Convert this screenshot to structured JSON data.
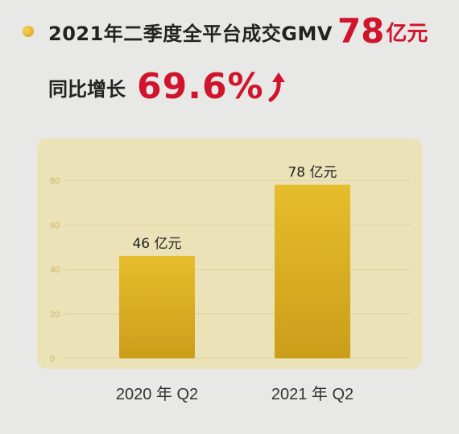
{
  "headline": {
    "text": "2021年二季度全平台成交GMV",
    "value": "78",
    "unit": "亿元"
  },
  "growth": {
    "label": "同比增长",
    "value": "69.6%"
  },
  "colors": {
    "accent_red": "#d0142c",
    "bar_gold": "#d8ad20",
    "panel_bg": "#ebe2b8",
    "tick_color": "#d0b468"
  },
  "icons": [
    "bullet-dot-icon",
    "up-arrow-icon"
  ],
  "chart_data": {
    "type": "bar",
    "categories": [
      "2020 年 Q2",
      "2021 年 Q2"
    ],
    "values": [
      46,
      78
    ],
    "data_labels": [
      "46 亿元",
      "78 亿元"
    ],
    "yticks": [
      0,
      20,
      40,
      60,
      80
    ],
    "ylim": [
      0,
      80
    ],
    "grid": true,
    "legend": "none",
    "title": "",
    "xlabel": "",
    "ylabel": ""
  }
}
